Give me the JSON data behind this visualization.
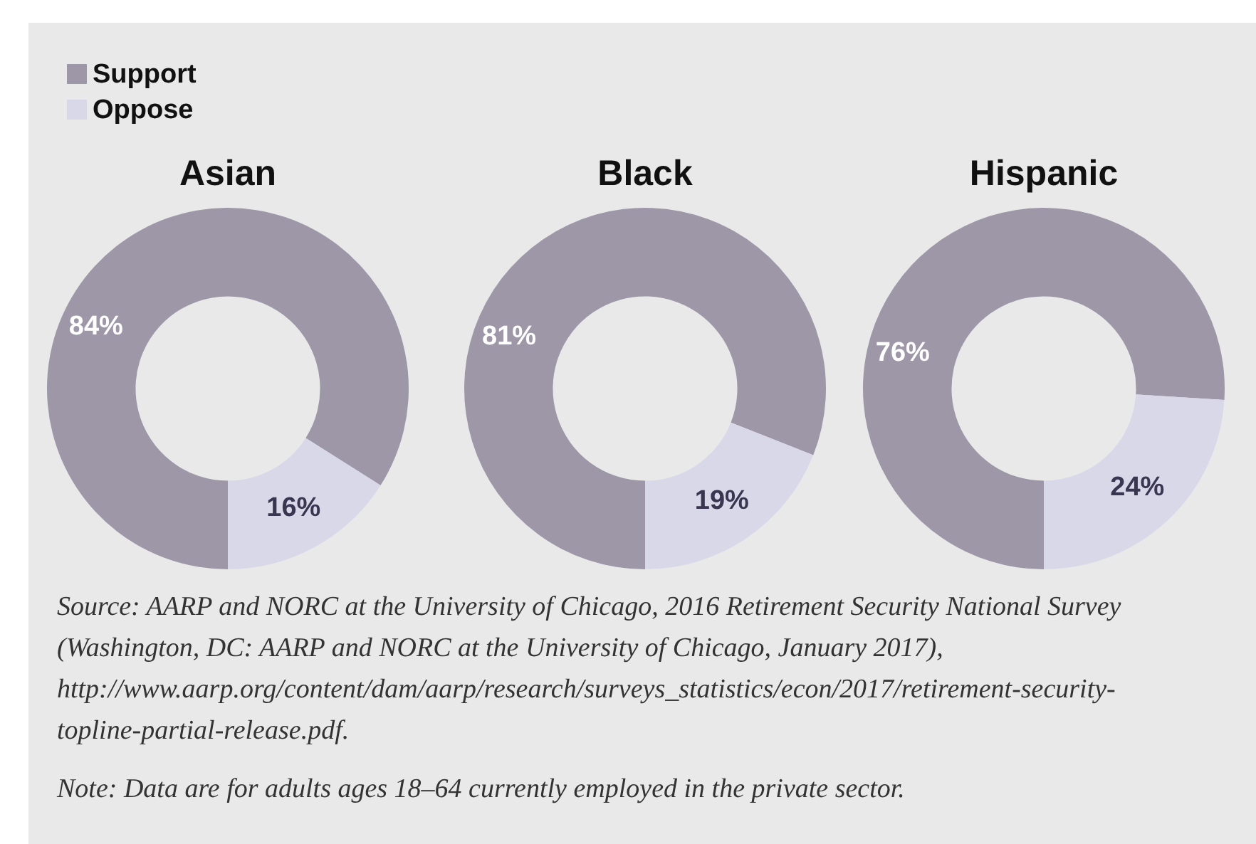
{
  "chart_data": [
    {
      "type": "donut",
      "title": "Asian",
      "categories": [
        "Support",
        "Oppose"
      ],
      "values": [
        84,
        16
      ],
      "colors": [
        "#9e97a8",
        "#d8d8e9"
      ],
      "value_labels": [
        "84%",
        "16%"
      ],
      "legend": "top left"
    },
    {
      "type": "donut",
      "title": "Black",
      "categories": [
        null,
        null
      ],
      "values": [
        81,
        19
      ],
      "colors": [
        "#9e97a8",
        "#d8d8e9"
      ],
      "value_labels": [
        "81%",
        "19%"
      ]
    },
    {
      "type": "donut",
      "title": "Hispanic",
      "categories": [
        null,
        null
      ],
      "values": [
        76,
        24
      ],
      "colors": [
        "#9e97a8",
        "#d8d8e9"
      ],
      "value_labels": [
        "76%",
        "24%"
      ],
      "annotations": [
        "Source: AARP and NORC at the University of Chicago, 2016 Retirement Security National Survey (Washington, DC: AARP and NORC at the University of Chicago, January 2017), http://www.aarp.org/content/dam/aarp/research/surveys_statistics/econ/2017/retirement-security-topline-partial-release.pdf.",
        "Note: Data are for adults ages 18–64 currently employed in the private sector."
      ]
    }
  ]
}
